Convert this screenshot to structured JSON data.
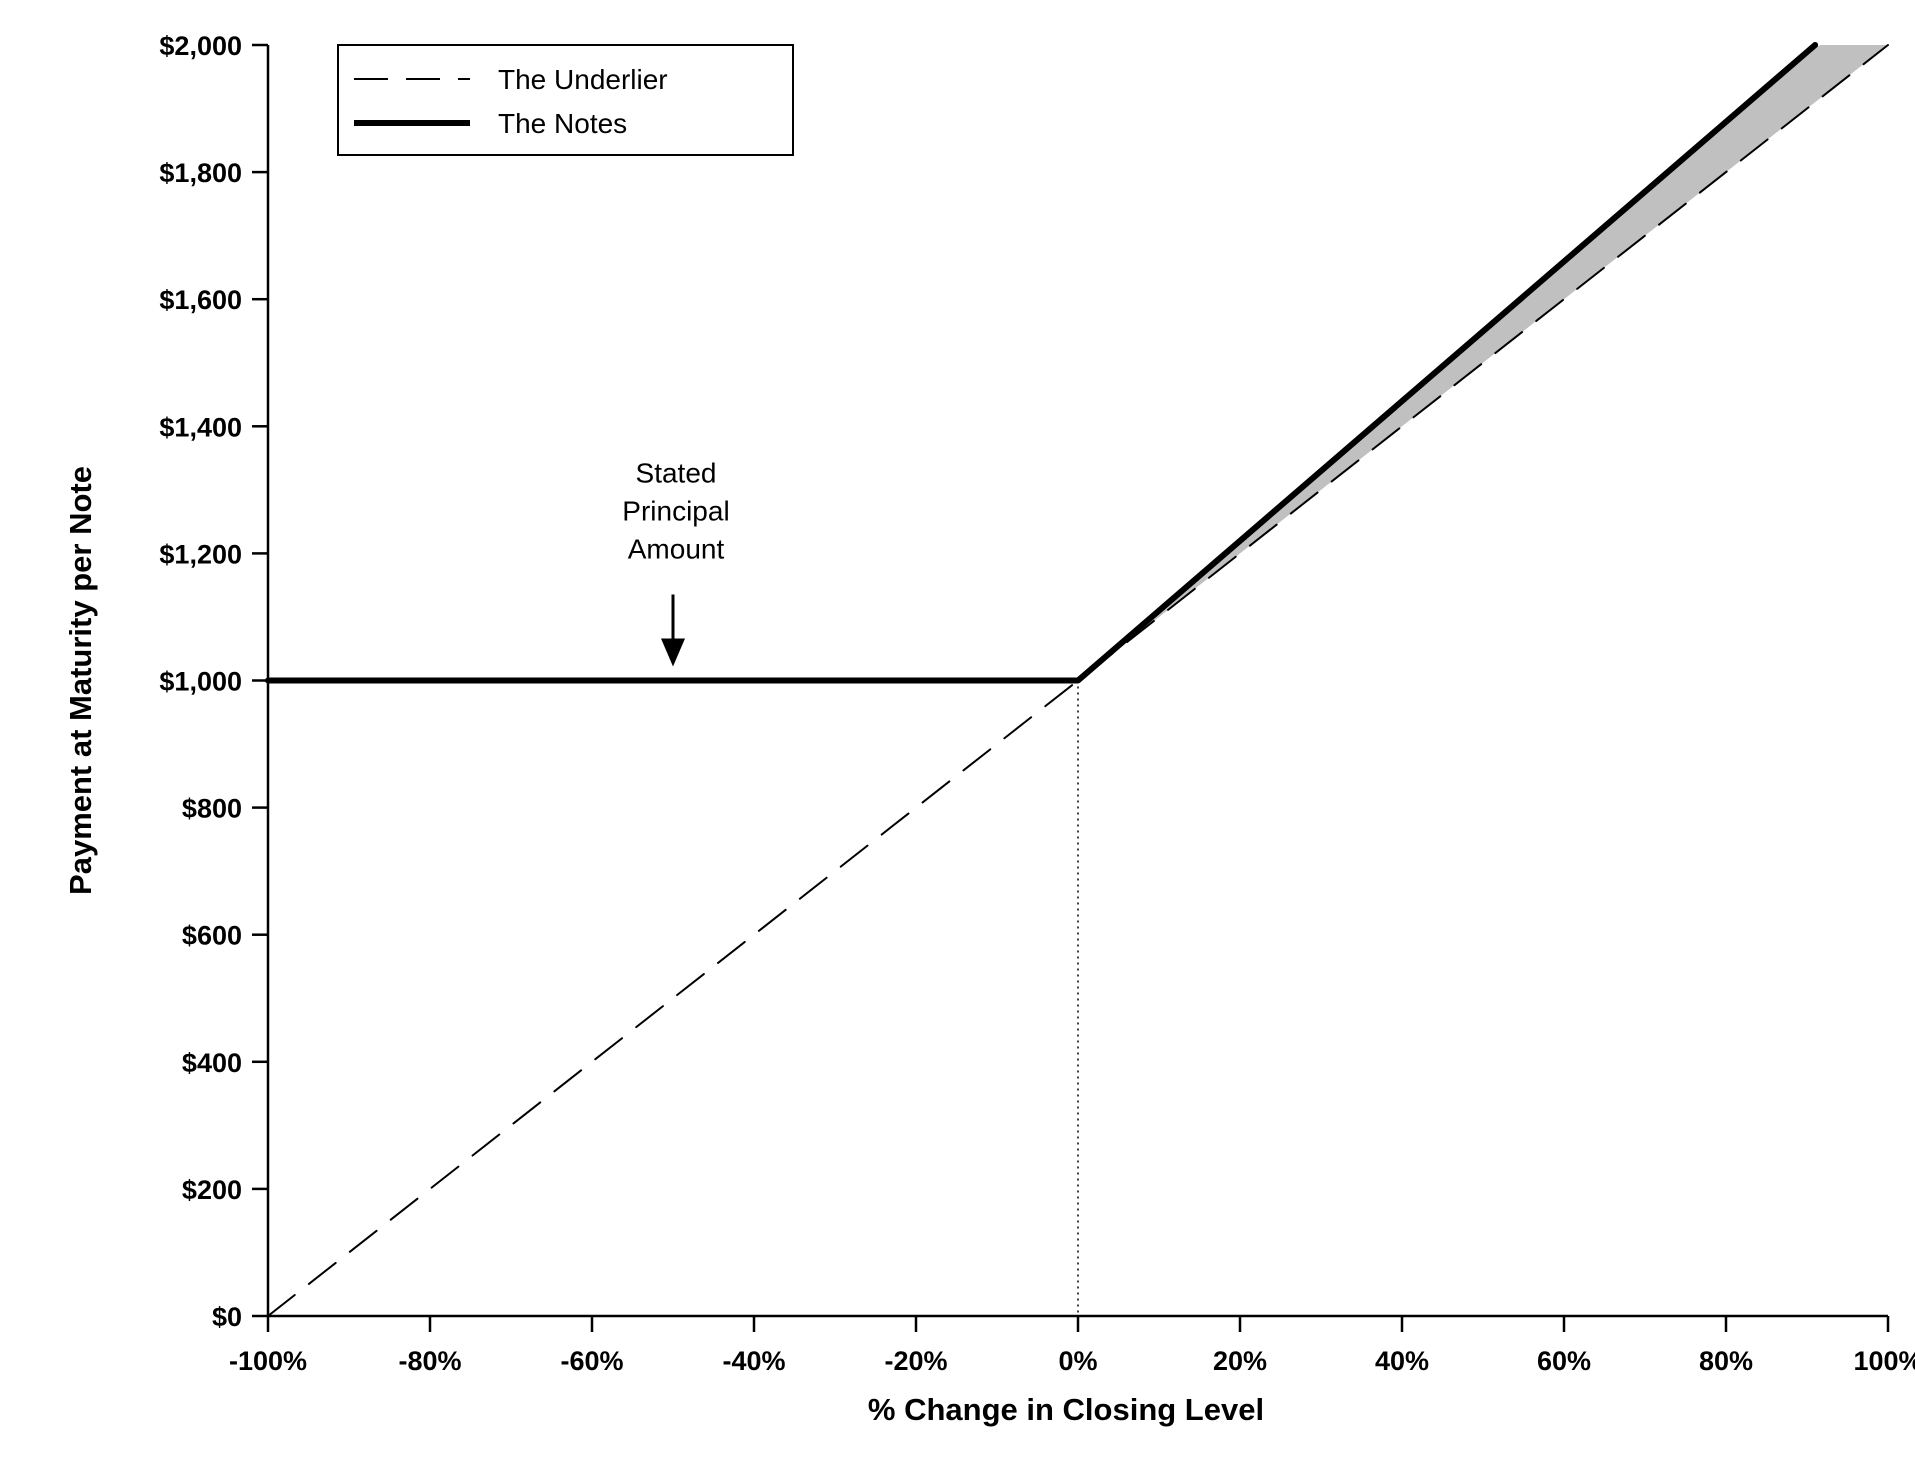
{
  "chart_data": {
    "type": "line",
    "title": "",
    "xlabel": "% Change in Closing Level",
    "ylabel": "Payment at Maturity per Note",
    "xlim": [
      -100,
      100
    ],
    "ylim": [
      0,
      2000
    ],
    "x_ticks": [
      -100,
      -80,
      -60,
      -40,
      -20,
      0,
      20,
      40,
      60,
      80,
      100
    ],
    "x_tick_labels": [
      "-100%",
      "-80%",
      "-60%",
      "-40%",
      "-20%",
      "0%",
      "20%",
      "40%",
      "60%",
      "80%",
      "100%"
    ],
    "y_ticks": [
      0,
      200,
      400,
      600,
      800,
      1000,
      1200,
      1400,
      1600,
      1800,
      2000
    ],
    "y_tick_labels": [
      "$0",
      "$200",
      "$400",
      "$600",
      "$800",
      "$1,000",
      "$1,200",
      "$1,400",
      "$1,600",
      "$1,800",
      "$2,000"
    ],
    "grid": false,
    "legend_position": "top-left",
    "series": [
      {
        "name": "The Underlier",
        "style": "dashed",
        "color": "#000000",
        "x": [
          -100,
          0,
          100
        ],
        "y": [
          0,
          1000,
          2000
        ]
      },
      {
        "name": "The Notes",
        "style": "solid-thick",
        "color": "#000000",
        "x": [
          -100,
          0,
          91
        ],
        "y": [
          1000,
          1000,
          2000
        ]
      }
    ],
    "shaded_region": {
      "color": "#c0c0c0",
      "between": [
        "The Notes",
        "The Underlier"
      ],
      "x_range": [
        0,
        100
      ]
    },
    "reference_line": {
      "x": 0,
      "style": "dotted"
    },
    "annotations": [
      {
        "lines": [
          "Stated",
          "Principal",
          "Amount"
        ],
        "arrow_to": {
          "x": -50,
          "y": 1000
        }
      }
    ]
  }
}
